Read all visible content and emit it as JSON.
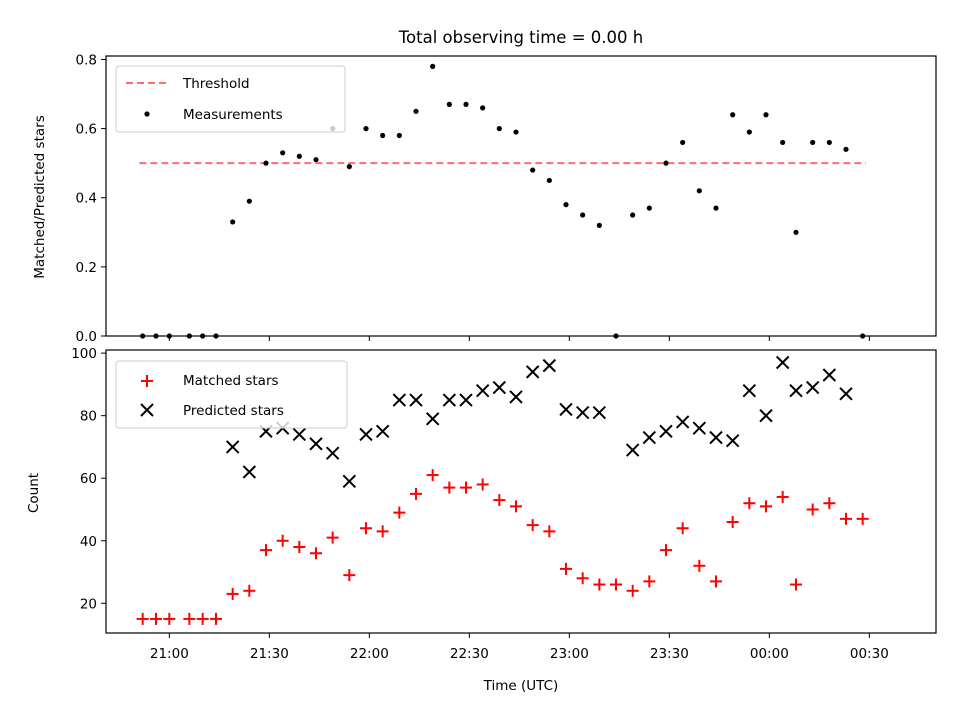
{
  "chart_data": [
    {
      "type": "scatter",
      "title": "Total observing time = 0.00 h",
      "xlabel": "",
      "ylabel": "Matched/Predicted stars",
      "ylim": [
        0,
        0.81
      ],
      "yticks": [
        0.0,
        0.2,
        0.4,
        0.6,
        0.8
      ],
      "ytick_labels": [
        "0.0",
        "0.2",
        "0.4",
        "0.6",
        "0.8"
      ],
      "legend_position": "top-left",
      "grid": false,
      "threshold": {
        "name": "Threshold",
        "value": 0.5,
        "x_range": [
          "20:51",
          "00:29"
        ],
        "color": "#ff6e6e",
        "style": "dashed"
      },
      "series": [
        {
          "name": "Measurements",
          "marker": "dot",
          "color": "#000000",
          "points": [
            [
              "20:52",
              0.0
            ],
            [
              "20:56",
              0.0
            ],
            [
              "21:00",
              0.0
            ],
            [
              "21:06",
              0.0
            ],
            [
              "21:10",
              0.0
            ],
            [
              "21:14",
              0.0
            ],
            [
              "21:19",
              0.33
            ],
            [
              "21:24",
              0.39
            ],
            [
              "21:29",
              0.5
            ],
            [
              "21:34",
              0.53
            ],
            [
              "21:39",
              0.52
            ],
            [
              "21:44",
              0.51
            ],
            [
              "21:49",
              0.6
            ],
            [
              "21:54",
              0.49
            ],
            [
              "21:59",
              0.6
            ],
            [
              "22:04",
              0.58
            ],
            [
              "22:09",
              0.58
            ],
            [
              "22:14",
              0.65
            ],
            [
              "22:19",
              0.78
            ],
            [
              "22:24",
              0.67
            ],
            [
              "22:29",
              0.67
            ],
            [
              "22:34",
              0.66
            ],
            [
              "22:39",
              0.6
            ],
            [
              "22:44",
              0.59
            ],
            [
              "22:49",
              0.48
            ],
            [
              "22:54",
              0.45
            ],
            [
              "22:59",
              0.38
            ],
            [
              "23:04",
              0.35
            ],
            [
              "23:09",
              0.32
            ],
            [
              "23:14",
              0.0
            ],
            [
              "23:19",
              0.35
            ],
            [
              "23:24",
              0.37
            ],
            [
              "23:29",
              0.5
            ],
            [
              "23:34",
              0.56
            ],
            [
              "23:39",
              0.42
            ],
            [
              "23:44",
              0.37
            ],
            [
              "23:49",
              0.64
            ],
            [
              "23:54",
              0.59
            ],
            [
              "23:59",
              0.64
            ],
            [
              "00:04",
              0.56
            ],
            [
              "00:08",
              0.3
            ],
            [
              "00:13",
              0.56
            ],
            [
              "00:18",
              0.56
            ],
            [
              "00:23",
              0.54
            ],
            [
              "00:28",
              0.0
            ]
          ]
        }
      ]
    },
    {
      "type": "scatter",
      "title": "",
      "xlabel": "Time (UTC)",
      "ylabel": "Count",
      "ylim": [
        10.5,
        101
      ],
      "yticks": [
        20,
        40,
        60,
        80,
        100
      ],
      "ytick_labels": [
        "20",
        "40",
        "60",
        "80",
        "100"
      ],
      "xlim": [
        "20:41",
        "00:50"
      ],
      "xticks": [
        "21:00",
        "21:30",
        "22:00",
        "22:30",
        "23:00",
        "23:30",
        "00:00",
        "00:30"
      ],
      "legend_position": "top-left",
      "grid": false,
      "series": [
        {
          "name": "Matched stars",
          "marker": "plus",
          "color": "#ff0000",
          "points": [
            [
              "20:52",
              15
            ],
            [
              "20:56",
              15
            ],
            [
              "21:00",
              15
            ],
            [
              "21:06",
              15
            ],
            [
              "21:10",
              15
            ],
            [
              "21:14",
              15
            ],
            [
              "21:19",
              23
            ],
            [
              "21:24",
              24
            ],
            [
              "21:29",
              37
            ],
            [
              "21:34",
              40
            ],
            [
              "21:39",
              38
            ],
            [
              "21:44",
              36
            ],
            [
              "21:49",
              41
            ],
            [
              "21:54",
              29
            ],
            [
              "21:59",
              44
            ],
            [
              "22:04",
              43
            ],
            [
              "22:09",
              49
            ],
            [
              "22:14",
              55
            ],
            [
              "22:19",
              61
            ],
            [
              "22:24",
              57
            ],
            [
              "22:29",
              57
            ],
            [
              "22:34",
              58
            ],
            [
              "22:39",
              53
            ],
            [
              "22:44",
              51
            ],
            [
              "22:49",
              45
            ],
            [
              "22:54",
              43
            ],
            [
              "22:59",
              31
            ],
            [
              "23:04",
              28
            ],
            [
              "23:09",
              26
            ],
            [
              "23:14",
              26
            ],
            [
              "23:19",
              24
            ],
            [
              "23:24",
              27
            ],
            [
              "23:29",
              37
            ],
            [
              "23:34",
              44
            ],
            [
              "23:39",
              32
            ],
            [
              "23:44",
              27
            ],
            [
              "23:49",
              46
            ],
            [
              "23:54",
              52
            ],
            [
              "23:59",
              51
            ],
            [
              "00:04",
              54
            ],
            [
              "00:08",
              26
            ],
            [
              "00:13",
              50
            ],
            [
              "00:18",
              52
            ],
            [
              "00:23",
              47
            ],
            [
              "00:28",
              47
            ]
          ]
        },
        {
          "name": "Predicted stars",
          "marker": "x",
          "color": "#000000",
          "points": [
            [
              "21:19",
              70
            ],
            [
              "21:24",
              62
            ],
            [
              "21:29",
              75
            ],
            [
              "21:34",
              76
            ],
            [
              "21:39",
              74
            ],
            [
              "21:44",
              71
            ],
            [
              "21:49",
              68
            ],
            [
              "21:54",
              59
            ],
            [
              "21:59",
              74
            ],
            [
              "22:04",
              75
            ],
            [
              "22:09",
              85
            ],
            [
              "22:14",
              85
            ],
            [
              "22:19",
              79
            ],
            [
              "22:24",
              85
            ],
            [
              "22:29",
              85
            ],
            [
              "22:34",
              88
            ],
            [
              "22:39",
              89
            ],
            [
              "22:44",
              86
            ],
            [
              "22:49",
              94
            ],
            [
              "22:54",
              96
            ],
            [
              "22:59",
              82
            ],
            [
              "23:04",
              81
            ],
            [
              "23:09",
              81
            ],
            [
              "23:19",
              69
            ],
            [
              "23:24",
              73
            ],
            [
              "23:29",
              75
            ],
            [
              "23:34",
              78
            ],
            [
              "23:39",
              76
            ],
            [
              "23:44",
              73
            ],
            [
              "23:49",
              72
            ],
            [
              "23:54",
              88
            ],
            [
              "23:59",
              80
            ],
            [
              "00:04",
              97
            ],
            [
              "00:08",
              88
            ],
            [
              "00:13",
              89
            ],
            [
              "00:18",
              93
            ],
            [
              "00:23",
              87
            ]
          ]
        }
      ]
    }
  ]
}
